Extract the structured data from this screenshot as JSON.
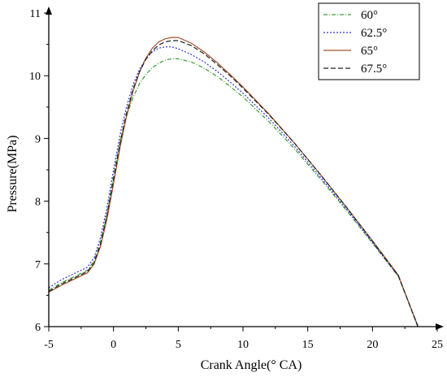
{
  "chart_data": {
    "type": "line",
    "title": "",
    "xlabel": "Crank Angle(° CA)",
    "ylabel": "Pressure(MPa)",
    "xlim": [
      -5,
      25
    ],
    "ylim": [
      6,
      11
    ],
    "xticks": [
      "-5",
      "0",
      "5",
      "10",
      "15",
      "20",
      "25"
    ],
    "yticks": [
      "6",
      "7",
      "8",
      "9",
      "10",
      "11"
    ],
    "grid": false,
    "legend_position": "top-right",
    "series": [
      {
        "name": "60°",
        "color": "#3a9a3a",
        "dash": "dash-dot",
        "x": [
          -5,
          -4,
          -3,
          -2,
          -1.5,
          -1,
          -0.5,
          0,
          0.5,
          1,
          1.5,
          2,
          2.5,
          3,
          3.5,
          4,
          4.5,
          5,
          6,
          7,
          8,
          9,
          10,
          12,
          14,
          16,
          18,
          20,
          22,
          23.5
        ],
        "y": [
          6.58,
          6.7,
          6.8,
          6.9,
          7.05,
          7.35,
          7.8,
          8.4,
          8.95,
          9.35,
          9.65,
          9.87,
          10.02,
          10.13,
          10.2,
          10.25,
          10.27,
          10.27,
          10.22,
          10.12,
          9.99,
          9.83,
          9.66,
          9.27,
          8.83,
          8.35,
          7.85,
          7.33,
          6.8,
          6.02
        ]
      },
      {
        "name": "62.5°",
        "color": "#3333cc",
        "dash": "dotted",
        "x": [
          -5,
          -4,
          -3,
          -2,
          -1.5,
          -1,
          -0.5,
          0,
          0.5,
          1,
          1.5,
          2,
          2.5,
          3,
          3.5,
          4,
          4.5,
          5,
          6,
          7,
          8,
          9,
          10,
          12,
          14,
          16,
          18,
          20,
          22,
          23.5
        ],
        "y": [
          6.62,
          6.75,
          6.85,
          6.95,
          7.1,
          7.42,
          7.9,
          8.5,
          9.05,
          9.5,
          9.85,
          10.1,
          10.27,
          10.38,
          10.44,
          10.46,
          10.46,
          10.43,
          10.34,
          10.22,
          10.07,
          9.9,
          9.72,
          9.32,
          8.87,
          8.38,
          7.87,
          7.34,
          6.8,
          6.02
        ]
      },
      {
        "name": "65°",
        "color": "#a0522d",
        "dash": "solid",
        "x": [
          -5,
          -4,
          -3,
          -2,
          -1.5,
          -1,
          -0.5,
          0,
          0.5,
          1,
          1.5,
          2,
          2.5,
          3,
          3.5,
          4,
          4.5,
          5,
          6,
          7,
          8,
          9,
          10,
          12,
          14,
          16,
          18,
          20,
          22,
          23.5
        ],
        "y": [
          6.55,
          6.66,
          6.76,
          6.86,
          7.0,
          7.28,
          7.72,
          8.28,
          8.85,
          9.35,
          9.75,
          10.05,
          10.28,
          10.44,
          10.54,
          10.59,
          10.61,
          10.61,
          10.52,
          10.38,
          10.21,
          10.02,
          9.82,
          9.39,
          8.92,
          8.42,
          7.9,
          7.37,
          6.82,
          6.0
        ]
      },
      {
        "name": "67.5°",
        "color": "#222222",
        "dash": "dashed",
        "x": [
          -5,
          -4,
          -3,
          -2,
          -1.5,
          -1,
          -0.5,
          0,
          0.5,
          1,
          1.5,
          2,
          2.5,
          3,
          3.5,
          4,
          4.5,
          5,
          6,
          7,
          8,
          9,
          10,
          12,
          14,
          16,
          18,
          20,
          22,
          23.5
        ],
        "y": [
          6.56,
          6.68,
          6.78,
          6.88,
          7.02,
          7.32,
          7.78,
          8.35,
          8.92,
          9.4,
          9.78,
          10.06,
          10.26,
          10.4,
          10.49,
          10.54,
          10.56,
          10.56,
          10.48,
          10.35,
          10.18,
          10.0,
          9.8,
          9.38,
          8.92,
          8.42,
          7.9,
          7.36,
          6.81,
          6.0
        ]
      }
    ]
  }
}
